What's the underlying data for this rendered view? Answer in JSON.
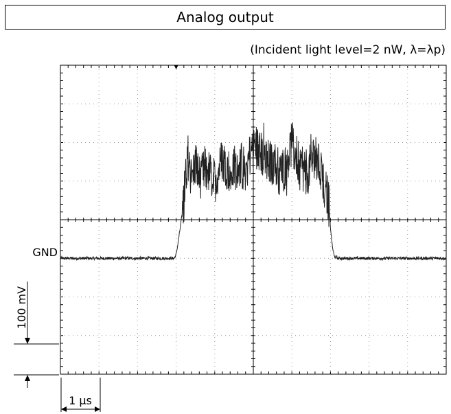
{
  "header": {
    "title": "Analog output"
  },
  "condition_note": "(Incident light level=2 nW, λ=λp)",
  "chart_data": {
    "type": "line",
    "title": "Analog output",
    "subtitle": "(Incident light level=2 nW, λ=λp)",
    "x_unit": "µs",
    "y_unit": "mV",
    "x_scale_label": "1 µs",
    "y_scale_label": "100 mV",
    "x_per_div": 1,
    "y_per_div": 100,
    "xlim": [
      0,
      10
    ],
    "ylim": [
      -300,
      500
    ],
    "grid": true,
    "reference_label": "GND",
    "reference_level": 0,
    "series": [
      {
        "points": [
          [
            0.0,
            0
          ],
          [
            2.95,
            0
          ],
          [
            3.0,
            10
          ],
          [
            3.05,
            40
          ],
          [
            3.1,
            75
          ],
          [
            3.15,
            110
          ],
          [
            3.2,
            155
          ],
          [
            3.3,
            270
          ],
          [
            3.4,
            200
          ],
          [
            3.5,
            250
          ],
          [
            3.6,
            210
          ],
          [
            3.8,
            230
          ],
          [
            4.0,
            200
          ],
          [
            4.2,
            260
          ],
          [
            4.4,
            220
          ],
          [
            4.6,
            240
          ],
          [
            4.8,
            230
          ],
          [
            5.0,
            300
          ],
          [
            5.2,
            270
          ],
          [
            5.4,
            250
          ],
          [
            5.6,
            240
          ],
          [
            5.8,
            230
          ],
          [
            6.0,
            300
          ],
          [
            6.2,
            240
          ],
          [
            6.4,
            220
          ],
          [
            6.6,
            270
          ],
          [
            6.8,
            210
          ],
          [
            6.95,
            150
          ],
          [
            7.0,
            80
          ],
          [
            7.05,
            30
          ],
          [
            7.1,
            5
          ],
          [
            7.2,
            0
          ],
          [
            10.0,
            0
          ]
        ],
        "noise_mV": 4,
        "high_noise_mV": 60
      }
    ]
  }
}
